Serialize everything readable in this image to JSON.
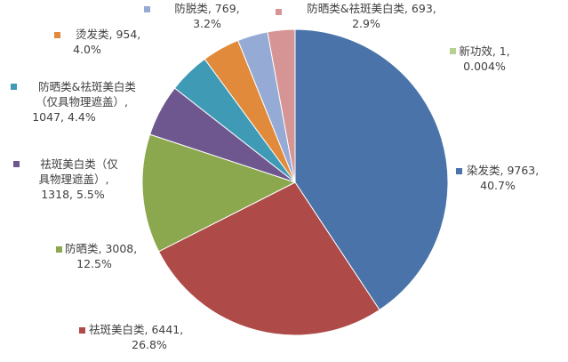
{
  "chart_data": {
    "type": "pie",
    "title": "",
    "slices": [
      {
        "name": "染发类",
        "value": 9763,
        "percent": "40.7%",
        "color": "#4A74A9",
        "label_lines": [
          "染发类, 9763,",
          "40.7%"
        ]
      },
      {
        "name": "祛斑美白类",
        "value": 6441,
        "percent": "26.8%",
        "color": "#AE4A47",
        "label_lines": [
          "祛斑美白类, 6441,",
          "26.8%"
        ]
      },
      {
        "name": "防晒类",
        "value": 3008,
        "percent": "12.5%",
        "color": "#8BA84E",
        "label_lines": [
          "防晒类, 3008,",
          "12.5%"
        ]
      },
      {
        "name": "祛斑美白类（仅具物理遮盖）",
        "value": 1318,
        "percent": "5.5%",
        "color": "#6E578E",
        "label_lines": [
          "祛斑美白类（仅",
          "具物理遮盖）,",
          "1318, 5.5%"
        ]
      },
      {
        "name": "防晒类&祛斑美白类（仅具物理遮盖）",
        "value": 1047,
        "percent": "4.4%",
        "color": "#3E9AB5",
        "label_lines": [
          "防晒类&祛斑美白类",
          "（仅具物理遮盖）,",
          "1047, 4.4%"
        ]
      },
      {
        "name": "烫发类",
        "value": 954,
        "percent": "4.0%",
        "color": "#E18A3C",
        "label_lines": [
          "烫发类, 954,",
          "4.0%"
        ]
      },
      {
        "name": "防脱类",
        "value": 769,
        "percent": "3.2%",
        "color": "#95ABD5",
        "label_lines": [
          "防脱类, 769,",
          "3.2%"
        ]
      },
      {
        "name": "防晒类&祛斑美白类",
        "value": 693,
        "percent": "2.9%",
        "color": "#D69594",
        "label_lines": [
          "防晒类&祛斑美白类, 693,",
          "2.9%"
        ]
      },
      {
        "name": "新功效",
        "value": 1,
        "percent": "0.004%",
        "color": "#B6D191",
        "label_lines": [
          "新功效, 1,",
          "0.004%"
        ]
      }
    ]
  }
}
